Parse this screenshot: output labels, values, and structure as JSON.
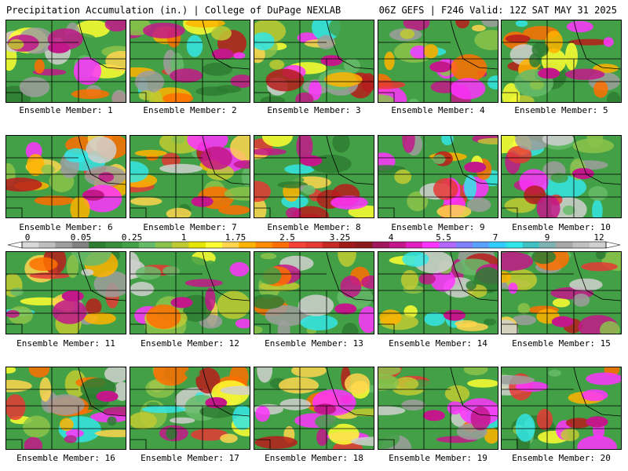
{
  "header": {
    "left_title": "Precipitation Accumulation (in.) | College of DuPage NEXLAB",
    "right_title": "06Z GEFS | F246 Valid: 12Z SAT MAY 31 2025"
  },
  "colorbar": {
    "tick_labels": [
      "0",
      "0.05",
      "0.25",
      "1",
      "1.75",
      "2.5",
      "3.25",
      "4",
      "5.5",
      "7",
      "9",
      "12"
    ],
    "colors": [
      "#d8d8d8",
      "#bdbdbd",
      "#9e9e9e",
      "#828282",
      "#2e7d32",
      "#388e3c",
      "#43a047",
      "#66bb6a",
      "#8bc34a",
      "#c0ca33",
      "#e6e600",
      "#ffff33",
      "#ffd54f",
      "#ffb300",
      "#ff8c00",
      "#ff6f00",
      "#f44336",
      "#e53935",
      "#c62828",
      "#a01818",
      "#8b1a1a",
      "#a0175d",
      "#c2188a",
      "#e01fc0",
      "#ff33ff",
      "#b266ff",
      "#8080ff",
      "#5aa0ff",
      "#33ccff",
      "#33e6e6",
      "#40c0c0",
      "#7fb2b2",
      "#a8a8a8",
      "#bfbfbf",
      "#d0d0d0"
    ]
  },
  "members": [
    {
      "label": "Ensemble Member: 1"
    },
    {
      "label": "Ensemble Member: 2"
    },
    {
      "label": "Ensemble Member: 3"
    },
    {
      "label": "Ensemble Member: 4"
    },
    {
      "label": "Ensemble Member: 5"
    },
    {
      "label": "Ensemble Member: 6"
    },
    {
      "label": "Ensemble Member: 7"
    },
    {
      "label": "Ensemble Member: 8"
    },
    {
      "label": "Ensemble Member: 9"
    },
    {
      "label": "Ensemble Member: 10"
    },
    {
      "label": "Ensemble Member: 11"
    },
    {
      "label": "Ensemble Member: 12"
    },
    {
      "label": "Ensemble Member: 13"
    },
    {
      "label": "Ensemble Member: 14"
    },
    {
      "label": "Ensemble Member: 15"
    },
    {
      "label": "Ensemble Member: 16"
    },
    {
      "label": "Ensemble Member: 17"
    },
    {
      "label": "Ensemble Member: 18"
    },
    {
      "label": "Ensemble Member: 19"
    },
    {
      "label": "Ensemble Member: 20"
    }
  ]
}
